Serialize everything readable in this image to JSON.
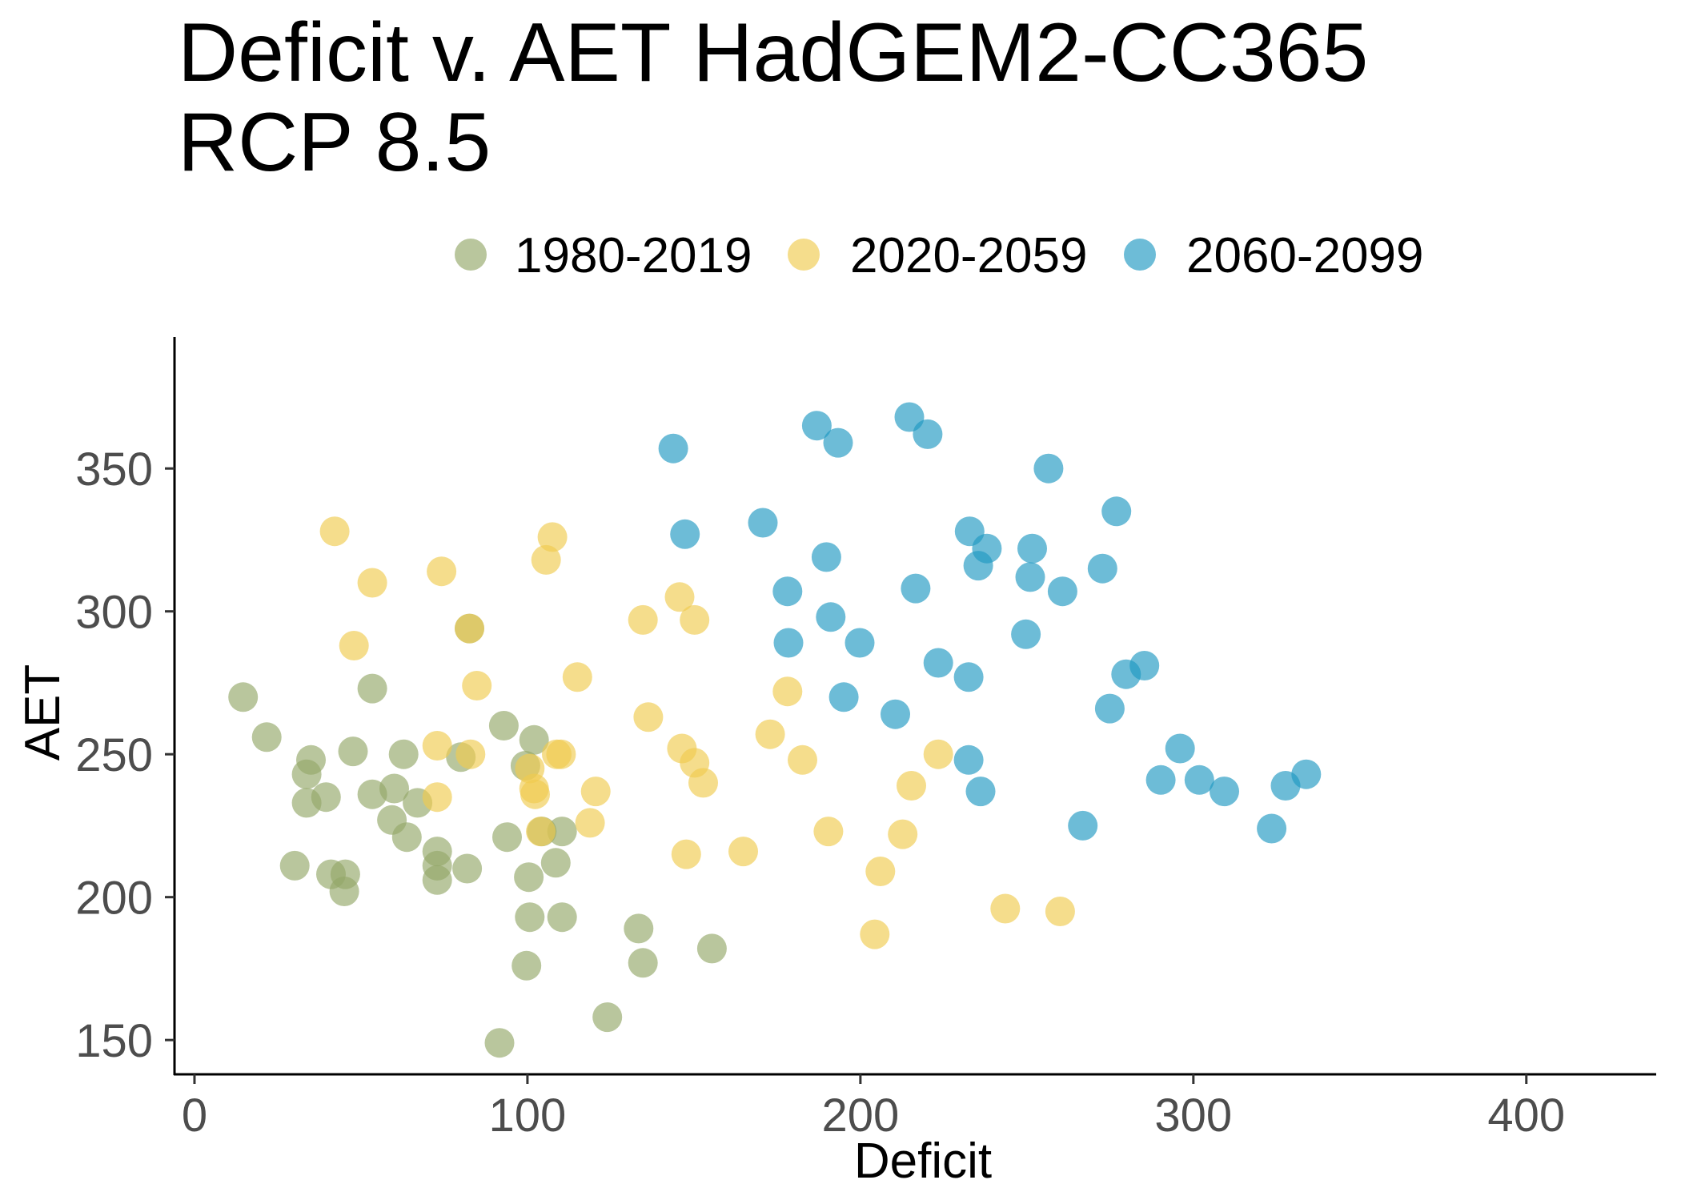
{
  "chart_data": {
    "type": "scatter",
    "title_lines": [
      "Deficit v. AET HadGEM2-CC365",
      "RCP 8.5"
    ],
    "xlabel": "Deficit",
    "ylabel": "AET",
    "xlim": [
      -6,
      439
    ],
    "ylim": [
      138,
      396
    ],
    "x_ticks": [
      0,
      100,
      200,
      300,
      400
    ],
    "y_ticks": [
      150,
      200,
      250,
      300,
      350
    ],
    "grid": false,
    "legend_position": "top",
    "series": [
      {
        "name": "1980-2019",
        "color": "#93A869",
        "points": [
          [
            14.6,
            270
          ],
          [
            21.7,
            256
          ],
          [
            35,
            248
          ],
          [
            33.7,
            243
          ],
          [
            33.7,
            233
          ],
          [
            39.5,
            235
          ],
          [
            30.1,
            211
          ],
          [
            41,
            208
          ],
          [
            45.3,
            208
          ],
          [
            45,
            202
          ],
          [
            47.6,
            251
          ],
          [
            53.4,
            273
          ],
          [
            53.4,
            236
          ],
          [
            60,
            238
          ],
          [
            59.3,
            227
          ],
          [
            62.8,
            250
          ],
          [
            63.8,
            221
          ],
          [
            67,
            233
          ],
          [
            72.9,
            216
          ],
          [
            72.9,
            211
          ],
          [
            72.9,
            206
          ],
          [
            80,
            249
          ],
          [
            81.9,
            210
          ],
          [
            82.6,
            294
          ],
          [
            92.9,
            260
          ],
          [
            93.9,
            221
          ],
          [
            91.6,
            149
          ],
          [
            99.4,
            246
          ],
          [
            102,
            255
          ],
          [
            100.4,
            207
          ],
          [
            100.7,
            193
          ],
          [
            99.7,
            176
          ],
          [
            104.3,
            223
          ],
          [
            108.5,
            212
          ],
          [
            110.4,
            223
          ],
          [
            110.4,
            193
          ],
          [
            124,
            158
          ],
          [
            133.4,
            189
          ],
          [
            134.7,
            177
          ],
          [
            155.4,
            182
          ]
        ]
      },
      {
        "name": "2020-2059",
        "color": "#F0CB4E",
        "points": [
          [
            42.1,
            328
          ],
          [
            53.4,
            310
          ],
          [
            47.9,
            288
          ],
          [
            74.2,
            314
          ],
          [
            82.6,
            294
          ],
          [
            84.8,
            274
          ],
          [
            72.9,
            253
          ],
          [
            82.9,
            250
          ],
          [
            72.9,
            235
          ],
          [
            100.7,
            245
          ],
          [
            102,
            238
          ],
          [
            102.3,
            236
          ],
          [
            104,
            223
          ],
          [
            107.5,
            326
          ],
          [
            105.6,
            318
          ],
          [
            108.8,
            250
          ],
          [
            110.1,
            250
          ],
          [
            115,
            277
          ],
          [
            120.5,
            237
          ],
          [
            118.8,
            226
          ],
          [
            134.7,
            297
          ],
          [
            136.3,
            263
          ],
          [
            145.7,
            305
          ],
          [
            150.2,
            297
          ],
          [
            146.4,
            252
          ],
          [
            150.2,
            247
          ],
          [
            152.8,
            240
          ],
          [
            147.7,
            215
          ],
          [
            164.8,
            216
          ],
          [
            172.9,
            257
          ],
          [
            178.1,
            272
          ],
          [
            182.6,
            248
          ],
          [
            190.4,
            223
          ],
          [
            206,
            209
          ],
          [
            204.3,
            187
          ],
          [
            212.7,
            222
          ],
          [
            215.3,
            239
          ],
          [
            223.4,
            250
          ],
          [
            243.5,
            196
          ],
          [
            260,
            195
          ]
        ]
      },
      {
        "name": "2060-2099",
        "color": "#1E98C2",
        "points": [
          [
            143.8,
            357
          ],
          [
            147.3,
            327
          ],
          [
            170.7,
            331
          ],
          [
            178.1,
            307
          ],
          [
            178.4,
            289
          ],
          [
            186.9,
            365
          ],
          [
            193.3,
            359
          ],
          [
            189.8,
            319
          ],
          [
            191.1,
            298
          ],
          [
            195,
            270
          ],
          [
            199.8,
            289
          ],
          [
            210.5,
            264
          ],
          [
            214.7,
            368
          ],
          [
            220.2,
            362
          ],
          [
            216.6,
            308
          ],
          [
            223.4,
            282
          ],
          [
            232.8,
            328
          ],
          [
            238,
            322
          ],
          [
            235.4,
            316
          ],
          [
            232.5,
            277
          ],
          [
            232.5,
            248
          ],
          [
            236.1,
            237
          ],
          [
            249.7,
            292
          ],
          [
            251.6,
            322
          ],
          [
            251,
            312
          ],
          [
            256.5,
            350
          ],
          [
            260.7,
            307
          ],
          [
            266.8,
            225
          ],
          [
            272.7,
            315
          ],
          [
            276.9,
            335
          ],
          [
            274.9,
            266
          ],
          [
            279.8,
            278
          ],
          [
            285.3,
            281
          ],
          [
            290.2,
            241
          ],
          [
            296,
            252
          ],
          [
            301.8,
            241
          ],
          [
            309.3,
            237
          ],
          [
            323.5,
            224
          ],
          [
            327.7,
            239
          ],
          [
            333.9,
            243
          ]
        ]
      }
    ]
  }
}
